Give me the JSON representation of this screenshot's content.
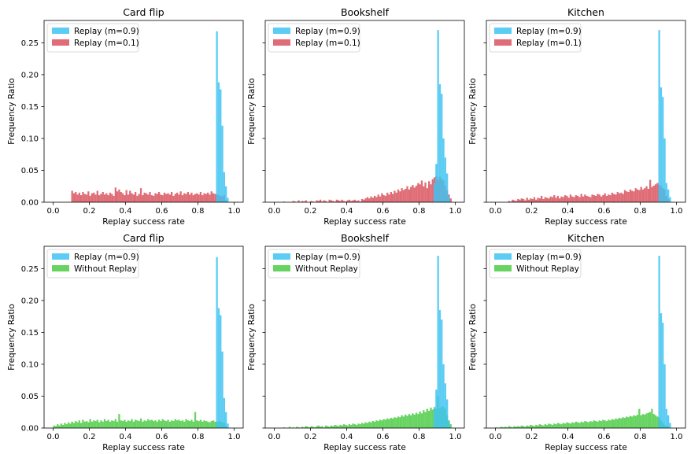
{
  "chart_data": [
    {
      "type": "bar",
      "title": "Card flip",
      "xlabel": "Replay success rate",
      "ylabel": "Frequency Ratio",
      "xlim": [
        -0.05,
        1.05
      ],
      "ylim": [
        0,
        0.285
      ],
      "xticks": [
        "0.0",
        "0.2",
        "0.4",
        "0.6",
        "0.8",
        "1.0"
      ],
      "yticks": [
        "0.00",
        "0.05",
        "0.10",
        "0.15",
        "0.20",
        "0.25"
      ],
      "show_ytick_labels": true,
      "legend": "top-left",
      "grid": false,
      "bin_width": 0.01,
      "series": [
        {
          "name": "Replay (m=0.9)",
          "color": "#3ec3f1",
          "bins": [
            0.9,
            0.91,
            0.92,
            0.93,
            0.94,
            0.95,
            0.96
          ],
          "values": [
            0.268,
            0.188,
            0.177,
            0.12,
            0.047,
            0.025,
            0.007
          ]
        },
        {
          "name": "Replay (m=0.1)",
          "color": "#d9525e",
          "range": [
            0.1,
            0.96
          ],
          "values": [
            0.018,
            0.014,
            0.016,
            0.012,
            0.015,
            0.011,
            0.016,
            0.013,
            0.012,
            0.017,
            0.01,
            0.014,
            0.015,
            0.012,
            0.018,
            0.011,
            0.013,
            0.016,
            0.012,
            0.014,
            0.011,
            0.015,
            0.013,
            0.01,
            0.023,
            0.017,
            0.02,
            0.016,
            0.014,
            0.011,
            0.019,
            0.012,
            0.018,
            0.014,
            0.012,
            0.016,
            0.01,
            0.013,
            0.022,
            0.011,
            0.015,
            0.014,
            0.012,
            0.016,
            0.011,
            0.01,
            0.014,
            0.013,
            0.016,
            0.012,
            0.011,
            0.015,
            0.013,
            0.014,
            0.012,
            0.016,
            0.01,
            0.013,
            0.015,
            0.012,
            0.017,
            0.011,
            0.014,
            0.013,
            0.016,
            0.012,
            0.015,
            0.011,
            0.013,
            0.014,
            0.012,
            0.016,
            0.011,
            0.014,
            0.013,
            0.015,
            0.012,
            0.017,
            0.014,
            0.013,
            0.012,
            0.011,
            0.01,
            0.009,
            0.011,
            0.003
          ]
        }
      ]
    },
    {
      "type": "bar",
      "title": "Bookshelf",
      "xlabel": "Replay success rate",
      "ylabel": "Frequency Ratio",
      "xlim": [
        -0.05,
        1.05
      ],
      "ylim": [
        0,
        0.285
      ],
      "xticks": [
        "0.0",
        "0.2",
        "0.4",
        "0.6",
        "0.8",
        "1.0"
      ],
      "yticks": [
        "0.00",
        "0.05",
        "0.10",
        "0.15",
        "0.20",
        "0.25"
      ],
      "show_ytick_labels": false,
      "legend": "top-left",
      "grid": false,
      "bin_width": 0.01,
      "series": [
        {
          "name": "Replay (m=0.9)",
          "color": "#3ec3f1",
          "bins": [
            0.88,
            0.89,
            0.9,
            0.91,
            0.92,
            0.93,
            0.94,
            0.95,
            0.96
          ],
          "values": [
            0.03,
            0.06,
            0.27,
            0.185,
            0.17,
            0.1,
            0.07,
            0.045,
            0.01
          ]
        },
        {
          "name": "Replay (m=0.1)",
          "color": "#d9525e",
          "range": [
            0.05,
            0.98
          ],
          "values": [
            0.001,
            0.0,
            0.0,
            0.0,
            0.0,
            0.002,
            0.001,
            0.0,
            0.003,
            0.0,
            0.002,
            0.001,
            0.003,
            0.0,
            0.0,
            0.002,
            0.001,
            0.0,
            0.003,
            0.002,
            0.004,
            0.001,
            0.003,
            0.002,
            0.0,
            0.004,
            0.003,
            0.002,
            0.001,
            0.004,
            0.003,
            0.002,
            0.004,
            0.002,
            0.001,
            0.003,
            0.004,
            0.002,
            0.003,
            0.004,
            0.002,
            0.003,
            0.001,
            0.005,
            0.004,
            0.006,
            0.008,
            0.006,
            0.009,
            0.007,
            0.01,
            0.008,
            0.012,
            0.009,
            0.014,
            0.011,
            0.01,
            0.015,
            0.012,
            0.016,
            0.013,
            0.018,
            0.015,
            0.02,
            0.017,
            0.022,
            0.019,
            0.021,
            0.025,
            0.02,
            0.024,
            0.027,
            0.023,
            0.026,
            0.03,
            0.028,
            0.034,
            0.025,
            0.031,
            0.022,
            0.033,
            0.028,
            0.036,
            0.039,
            0.041,
            0.035,
            0.04,
            0.037,
            0.034,
            0.026,
            0.019,
            0.012,
            0.006
          ]
        }
      ]
    },
    {
      "type": "bar",
      "title": "Kitchen",
      "xlabel": "Replay success rate",
      "ylabel": "Frequency Ratio",
      "xlim": [
        -0.05,
        1.05
      ],
      "ylim": [
        0,
        0.285
      ],
      "xticks": [
        "0.0",
        "0.2",
        "0.4",
        "0.6",
        "0.8",
        "1.0"
      ],
      "yticks": [
        "0.00",
        "0.05",
        "0.10",
        "0.15",
        "0.20",
        "0.25"
      ],
      "show_ytick_labels": false,
      "legend": "top-left",
      "grid": false,
      "bin_width": 0.01,
      "series": [
        {
          "name": "Replay (m=0.9)",
          "color": "#3ec3f1",
          "bins": [
            0.9,
            0.91,
            0.92,
            0.93,
            0.94,
            0.95,
            0.96
          ],
          "values": [
            0.27,
            0.18,
            0.165,
            0.1,
            0.03,
            0.02,
            0.008
          ]
        },
        {
          "name": "Replay (m=0.1)",
          "color": "#d9525e",
          "range": [
            0.07,
            0.96
          ],
          "values": [
            0.002,
            0.001,
            0.004,
            0.003,
            0.002,
            0.005,
            0.004,
            0.006,
            0.005,
            0.003,
            0.007,
            0.004,
            0.006,
            0.005,
            0.008,
            0.004,
            0.007,
            0.006,
            0.01,
            0.005,
            0.008,
            0.007,
            0.006,
            0.009,
            0.008,
            0.011,
            0.007,
            0.01,
            0.006,
            0.009,
            0.008,
            0.011,
            0.01,
            0.007,
            0.012,
            0.009,
            0.008,
            0.011,
            0.01,
            0.008,
            0.013,
            0.009,
            0.012,
            0.01,
            0.009,
            0.008,
            0.012,
            0.011,
            0.01,
            0.013,
            0.012,
            0.009,
            0.011,
            0.014,
            0.01,
            0.012,
            0.011,
            0.015,
            0.013,
            0.012,
            0.016,
            0.014,
            0.015,
            0.013,
            0.019,
            0.017,
            0.016,
            0.02,
            0.018,
            0.017,
            0.022,
            0.02,
            0.019,
            0.024,
            0.02,
            0.022,
            0.025,
            0.021,
            0.035,
            0.024,
            0.026,
            0.028,
            0.03,
            0.027,
            0.025,
            0.022,
            0.02,
            0.01,
            0.005
          ]
        }
      ]
    },
    {
      "type": "bar",
      "title": "Card flip",
      "xlabel": "Replay success rate",
      "ylabel": "Frequency Ratio",
      "xlim": [
        -0.05,
        1.05
      ],
      "ylim": [
        0,
        0.285
      ],
      "xticks": [
        "0.0",
        "0.2",
        "0.4",
        "0.6",
        "0.8",
        "1.0"
      ],
      "yticks": [
        "0.00",
        "0.05",
        "0.10",
        "0.15",
        "0.20",
        "0.25"
      ],
      "show_ytick_labels": true,
      "legend": "top-left",
      "grid": false,
      "bin_width": 0.01,
      "series": [
        {
          "name": "Replay (m=0.9)",
          "color": "#3ec3f1",
          "bins": [
            0.9,
            0.91,
            0.92,
            0.93,
            0.94,
            0.95,
            0.96
          ],
          "values": [
            0.268,
            0.188,
            0.177,
            0.12,
            0.047,
            0.025,
            0.007
          ]
        },
        {
          "name": "Without Replay",
          "color": "#4ccb45",
          "range": [
            0.0,
            0.96
          ],
          "values": [
            0.004,
            0.003,
            0.006,
            0.004,
            0.007,
            0.005,
            0.008,
            0.006,
            0.009,
            0.007,
            0.01,
            0.008,
            0.011,
            0.009,
            0.012,
            0.008,
            0.013,
            0.01,
            0.011,
            0.009,
            0.014,
            0.01,
            0.012,
            0.011,
            0.013,
            0.009,
            0.012,
            0.01,
            0.014,
            0.011,
            0.013,
            0.01,
            0.012,
            0.011,
            0.014,
            0.01,
            0.022,
            0.012,
            0.011,
            0.013,
            0.01,
            0.012,
            0.011,
            0.014,
            0.01,
            0.013,
            0.012,
            0.011,
            0.015,
            0.01,
            0.012,
            0.011,
            0.014,
            0.012,
            0.013,
            0.011,
            0.012,
            0.01,
            0.013,
            0.011,
            0.014,
            0.012,
            0.011,
            0.013,
            0.01,
            0.012,
            0.011,
            0.014,
            0.012,
            0.013,
            0.011,
            0.012,
            0.01,
            0.014,
            0.012,
            0.011,
            0.013,
            0.01,
            0.025,
            0.012,
            0.011,
            0.013,
            0.01,
            0.012,
            0.011,
            0.01,
            0.009,
            0.011,
            0.012,
            0.01,
            0.009,
            0.011,
            0.01,
            0.009,
            0.008,
            0.003
          ]
        }
      ]
    },
    {
      "type": "bar",
      "title": "Bookshelf",
      "xlabel": "Replay success rate",
      "ylabel": "Frequency Ratio",
      "xlim": [
        -0.05,
        1.05
      ],
      "ylim": [
        0,
        0.285
      ],
      "xticks": [
        "0.0",
        "0.2",
        "0.4",
        "0.6",
        "0.8",
        "1.0"
      ],
      "yticks": [
        "0.00",
        "0.05",
        "0.10",
        "0.15",
        "0.20",
        "0.25"
      ],
      "show_ytick_labels": false,
      "legend": "top-left",
      "grid": false,
      "bin_width": 0.01,
      "series": [
        {
          "name": "Replay (m=0.9)",
          "color": "#3ec3f1",
          "bins": [
            0.88,
            0.89,
            0.9,
            0.91,
            0.92,
            0.93,
            0.94,
            0.95,
            0.96
          ],
          "values": [
            0.03,
            0.06,
            0.27,
            0.185,
            0.17,
            0.1,
            0.07,
            0.045,
            0.01
          ]
        },
        {
          "name": "Without Replay",
          "color": "#4ccb45",
          "range": [
            0.05,
            0.98
          ],
          "values": [
            0.001,
            0.0,
            0.0,
            0.002,
            0.0,
            0.001,
            0.0,
            0.002,
            0.001,
            0.0,
            0.002,
            0.001,
            0.003,
            0.002,
            0.001,
            0.003,
            0.002,
            0.001,
            0.003,
            0.004,
            0.002,
            0.003,
            0.001,
            0.004,
            0.003,
            0.002,
            0.004,
            0.003,
            0.005,
            0.004,
            0.003,
            0.005,
            0.004,
            0.006,
            0.005,
            0.004,
            0.006,
            0.005,
            0.007,
            0.006,
            0.005,
            0.007,
            0.006,
            0.008,
            0.007,
            0.009,
            0.008,
            0.01,
            0.009,
            0.011,
            0.01,
            0.012,
            0.011,
            0.013,
            0.012,
            0.014,
            0.013,
            0.015,
            0.014,
            0.016,
            0.015,
            0.017,
            0.016,
            0.018,
            0.017,
            0.02,
            0.018,
            0.021,
            0.019,
            0.022,
            0.02,
            0.023,
            0.021,
            0.024,
            0.022,
            0.026,
            0.023,
            0.028,
            0.025,
            0.03,
            0.027,
            0.032,
            0.029,
            0.033,
            0.03,
            0.05,
            0.031,
            0.034,
            0.033,
            0.03,
            0.02,
            0.012,
            0.006
          ]
        }
      ]
    },
    {
      "type": "bar",
      "title": "Kitchen",
      "xlabel": "Replay success rate",
      "ylabel": "Frequency Ratio",
      "xlim": [
        -0.05,
        1.05
      ],
      "ylim": [
        0,
        0.285
      ],
      "xticks": [
        "0.0",
        "0.2",
        "0.4",
        "0.6",
        "0.8",
        "1.0"
      ],
      "yticks": [
        "0.00",
        "0.05",
        "0.10",
        "0.15",
        "0.20",
        "0.25"
      ],
      "show_ytick_labels": false,
      "legend": "top-left",
      "grid": false,
      "bin_width": 0.01,
      "series": [
        {
          "name": "Replay (m=0.9)",
          "color": "#3ec3f1",
          "bins": [
            0.9,
            0.91,
            0.92,
            0.93,
            0.94,
            0.95,
            0.96
          ],
          "values": [
            0.27,
            0.18,
            0.165,
            0.1,
            0.03,
            0.02,
            0.008
          ]
        },
        {
          "name": "Without Replay",
          "color": "#4ccb45",
          "range": [
            0.0,
            0.96
          ],
          "values": [
            0.001,
            0.0,
            0.001,
            0.002,
            0.001,
            0.002,
            0.001,
            0.003,
            0.002,
            0.001,
            0.003,
            0.002,
            0.003,
            0.002,
            0.004,
            0.003,
            0.002,
            0.004,
            0.003,
            0.005,
            0.004,
            0.003,
            0.005,
            0.004,
            0.006,
            0.005,
            0.004,
            0.006,
            0.005,
            0.007,
            0.006,
            0.005,
            0.007,
            0.006,
            0.008,
            0.007,
            0.006,
            0.008,
            0.007,
            0.009,
            0.008,
            0.007,
            0.009,
            0.008,
            0.01,
            0.009,
            0.008,
            0.01,
            0.009,
            0.011,
            0.01,
            0.009,
            0.011,
            0.01,
            0.012,
            0.011,
            0.01,
            0.012,
            0.011,
            0.013,
            0.012,
            0.011,
            0.013,
            0.012,
            0.014,
            0.013,
            0.015,
            0.014,
            0.016,
            0.015,
            0.017,
            0.016,
            0.018,
            0.017,
            0.019,
            0.018,
            0.02,
            0.019,
            0.021,
            0.03,
            0.02,
            0.022,
            0.021,
            0.023,
            0.024,
            0.025,
            0.03,
            0.022,
            0.02,
            0.018,
            0.016,
            0.012,
            0.008,
            0.005,
            0.003,
            0.002
          ]
        }
      ]
    }
  ]
}
